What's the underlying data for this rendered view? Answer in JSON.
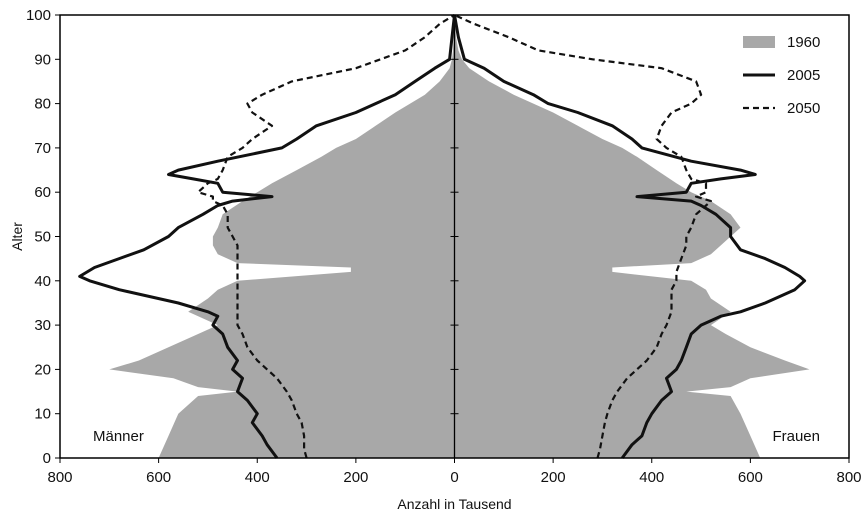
{
  "chart_data": {
    "type": "area",
    "title": "",
    "xlabel": "Anzahl in Tausend",
    "ylabel": "Alter",
    "xlim": [
      -800,
      800
    ],
    "ylim": [
      0,
      100
    ],
    "xticks": [
      -800,
      -600,
      -400,
      -200,
      0,
      200,
      400,
      600,
      800
    ],
    "xtick_labels": [
      "800",
      "600",
      "400",
      "200",
      "0",
      "200",
      "400",
      "600",
      "800"
    ],
    "yticks": [
      0,
      10,
      20,
      30,
      40,
      50,
      60,
      70,
      80,
      90,
      100
    ],
    "ytick_labels": [
      "0",
      "10",
      "20",
      "30",
      "40",
      "50",
      "60",
      "70",
      "80",
      "90",
      "100"
    ],
    "grid": false,
    "legend_position": "top-right",
    "side_labels": {
      "left": "Männer",
      "right": "Frauen"
    },
    "series": [
      {
        "name": "1960",
        "style": "gray-area",
        "color": "#a8a8a8",
        "age": [
          0,
          5,
          10,
          14,
          15,
          16,
          18,
          20,
          22,
          25,
          28,
          30,
          33,
          36,
          38,
          40,
          42,
          43,
          44,
          46,
          48,
          50,
          52,
          55,
          58,
          60,
          62,
          65,
          68,
          70,
          72,
          75,
          78,
          80,
          82,
          85,
          88,
          90,
          92,
          95,
          100
        ],
        "men": [
          600,
          580,
          560,
          520,
          440,
          520,
          570,
          700,
          640,
          580,
          520,
          480,
          540,
          500,
          480,
          440,
          210,
          210,
          440,
          480,
          490,
          490,
          480,
          470,
          430,
          400,
          370,
          320,
          270,
          240,
          200,
          160,
          120,
          90,
          60,
          30,
          10,
          5,
          3,
          2,
          0
        ],
        "women": [
          620,
          600,
          580,
          560,
          470,
          560,
          600,
          720,
          670,
          600,
          550,
          520,
          560,
          520,
          510,
          480,
          320,
          320,
          480,
          520,
          540,
          560,
          580,
          560,
          520,
          480,
          450,
          410,
          370,
          340,
          300,
          250,
          200,
          160,
          120,
          70,
          30,
          15,
          8,
          3,
          0
        ]
      },
      {
        "name": "2005",
        "style": "solid",
        "color": "#111111",
        "age": [
          0,
          3,
          5,
          8,
          10,
          13,
          15,
          18,
          20,
          22,
          25,
          28,
          30,
          32,
          33,
          35,
          38,
          40,
          41,
          43,
          45,
          47,
          50,
          52,
          55,
          57,
          58,
          59,
          60,
          62,
          63,
          64,
          65,
          67,
          70,
          72,
          75,
          78,
          80,
          82,
          85,
          88,
          90,
          95,
          100
        ],
        "men": [
          360,
          380,
          390,
          410,
          400,
          420,
          440,
          430,
          450,
          440,
          460,
          470,
          490,
          480,
          500,
          560,
          680,
          740,
          760,
          730,
          680,
          630,
          580,
          560,
          510,
          480,
          450,
          370,
          470,
          480,
          530,
          580,
          560,
          480,
          350,
          320,
          280,
          200,
          160,
          120,
          80,
          40,
          10,
          5,
          0
        ],
        "women": [
          340,
          360,
          380,
          390,
          400,
          420,
          440,
          430,
          450,
          460,
          470,
          480,
          500,
          540,
          580,
          630,
          690,
          710,
          700,
          670,
          630,
          580,
          560,
          560,
          530,
          500,
          480,
          370,
          470,
          480,
          540,
          610,
          580,
          480,
          380,
          360,
          320,
          250,
          190,
          160,
          100,
          60,
          20,
          8,
          0
        ]
      },
      {
        "name": "2050",
        "style": "dashed",
        "color": "#111111",
        "age": [
          0,
          2,
          5,
          8,
          10,
          13,
          15,
          18,
          20,
          22,
          25,
          28,
          30,
          33,
          35,
          38,
          40,
          42,
          45,
          48,
          50,
          52,
          55,
          57,
          58,
          59,
          60,
          62,
          63,
          65,
          68,
          70,
          72,
          75,
          78,
          80,
          82,
          85,
          88,
          90,
          92,
          95,
          98,
          100
        ],
        "men": [
          300,
          305,
          305,
          310,
          320,
          330,
          340,
          360,
          380,
          400,
          420,
          430,
          440,
          440,
          440,
          440,
          440,
          440,
          440,
          440,
          450,
          460,
          460,
          470,
          490,
          490,
          520,
          500,
          480,
          470,
          460,
          430,
          410,
          370,
          410,
          420,
          390,
          330,
          200,
          150,
          100,
          60,
          30,
          0
        ],
        "women": [
          290,
          295,
          300,
          305,
          310,
          320,
          330,
          350,
          370,
          390,
          410,
          420,
          430,
          440,
          440,
          440,
          450,
          450,
          460,
          470,
          470,
          480,
          490,
          510,
          520,
          490,
          510,
          510,
          480,
          470,
          460,
          430,
          410,
          420,
          440,
          480,
          500,
          490,
          420,
          280,
          170,
          110,
          40,
          0
        ]
      }
    ]
  }
}
